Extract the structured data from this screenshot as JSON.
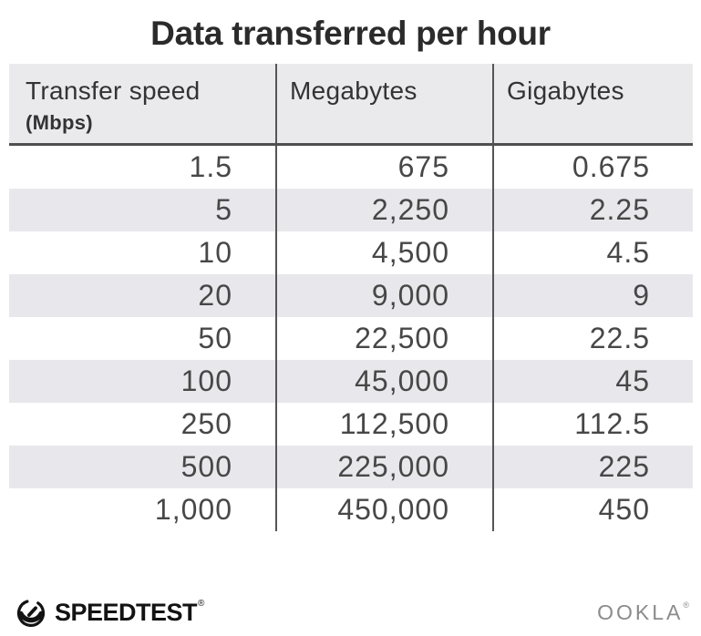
{
  "title": "Data transferred per hour",
  "table": {
    "columns": [
      {
        "label": "Transfer speed",
        "sublabel": "(Mbps)"
      },
      {
        "label": "Megabytes"
      },
      {
        "label": "Gigabytes"
      }
    ],
    "rows": [
      [
        "1.5",
        "675",
        "0.675"
      ],
      [
        "5",
        "2,250",
        "2.25"
      ],
      [
        "10",
        "4,500",
        "4.5"
      ],
      [
        "20",
        "9,000",
        "9"
      ],
      [
        "50",
        "22,500",
        "22.5"
      ],
      [
        "100",
        "45,000",
        "45"
      ],
      [
        "250",
        "112,500",
        "112.5"
      ],
      [
        "500",
        "225,000",
        "225"
      ],
      [
        "1,000",
        "450,000",
        "450"
      ]
    ]
  },
  "chart_data": {
    "type": "table",
    "title": "Data transferred per hour",
    "columns": [
      "Transfer speed (Mbps)",
      "Megabytes",
      "Gigabytes"
    ],
    "rows": [
      [
        1.5,
        675,
        0.675
      ],
      [
        5,
        2250,
        2.25
      ],
      [
        10,
        4500,
        4.5
      ],
      [
        20,
        9000,
        9
      ],
      [
        50,
        22500,
        22.5
      ],
      [
        100,
        45000,
        45
      ],
      [
        250,
        112500,
        112.5
      ],
      [
        500,
        225000,
        225
      ],
      [
        1000,
        450000,
        450
      ]
    ]
  },
  "footer": {
    "speedtest_label": "SPEEDTEST",
    "speedtest_mark": "®",
    "ookla_label": "OOKLA",
    "ookla_mark": "®"
  },
  "colors": {
    "title_text": "#2b2b2b",
    "header_bg": "#eae9ec",
    "stripe_bg": "#e8e8ec",
    "header_text": "#333333",
    "data_text": "#474747",
    "divider": "#555555",
    "strong_line": "#4f4f4f",
    "speedtest_black": "#131313",
    "ookla_gray": "#8b8b8b"
  }
}
